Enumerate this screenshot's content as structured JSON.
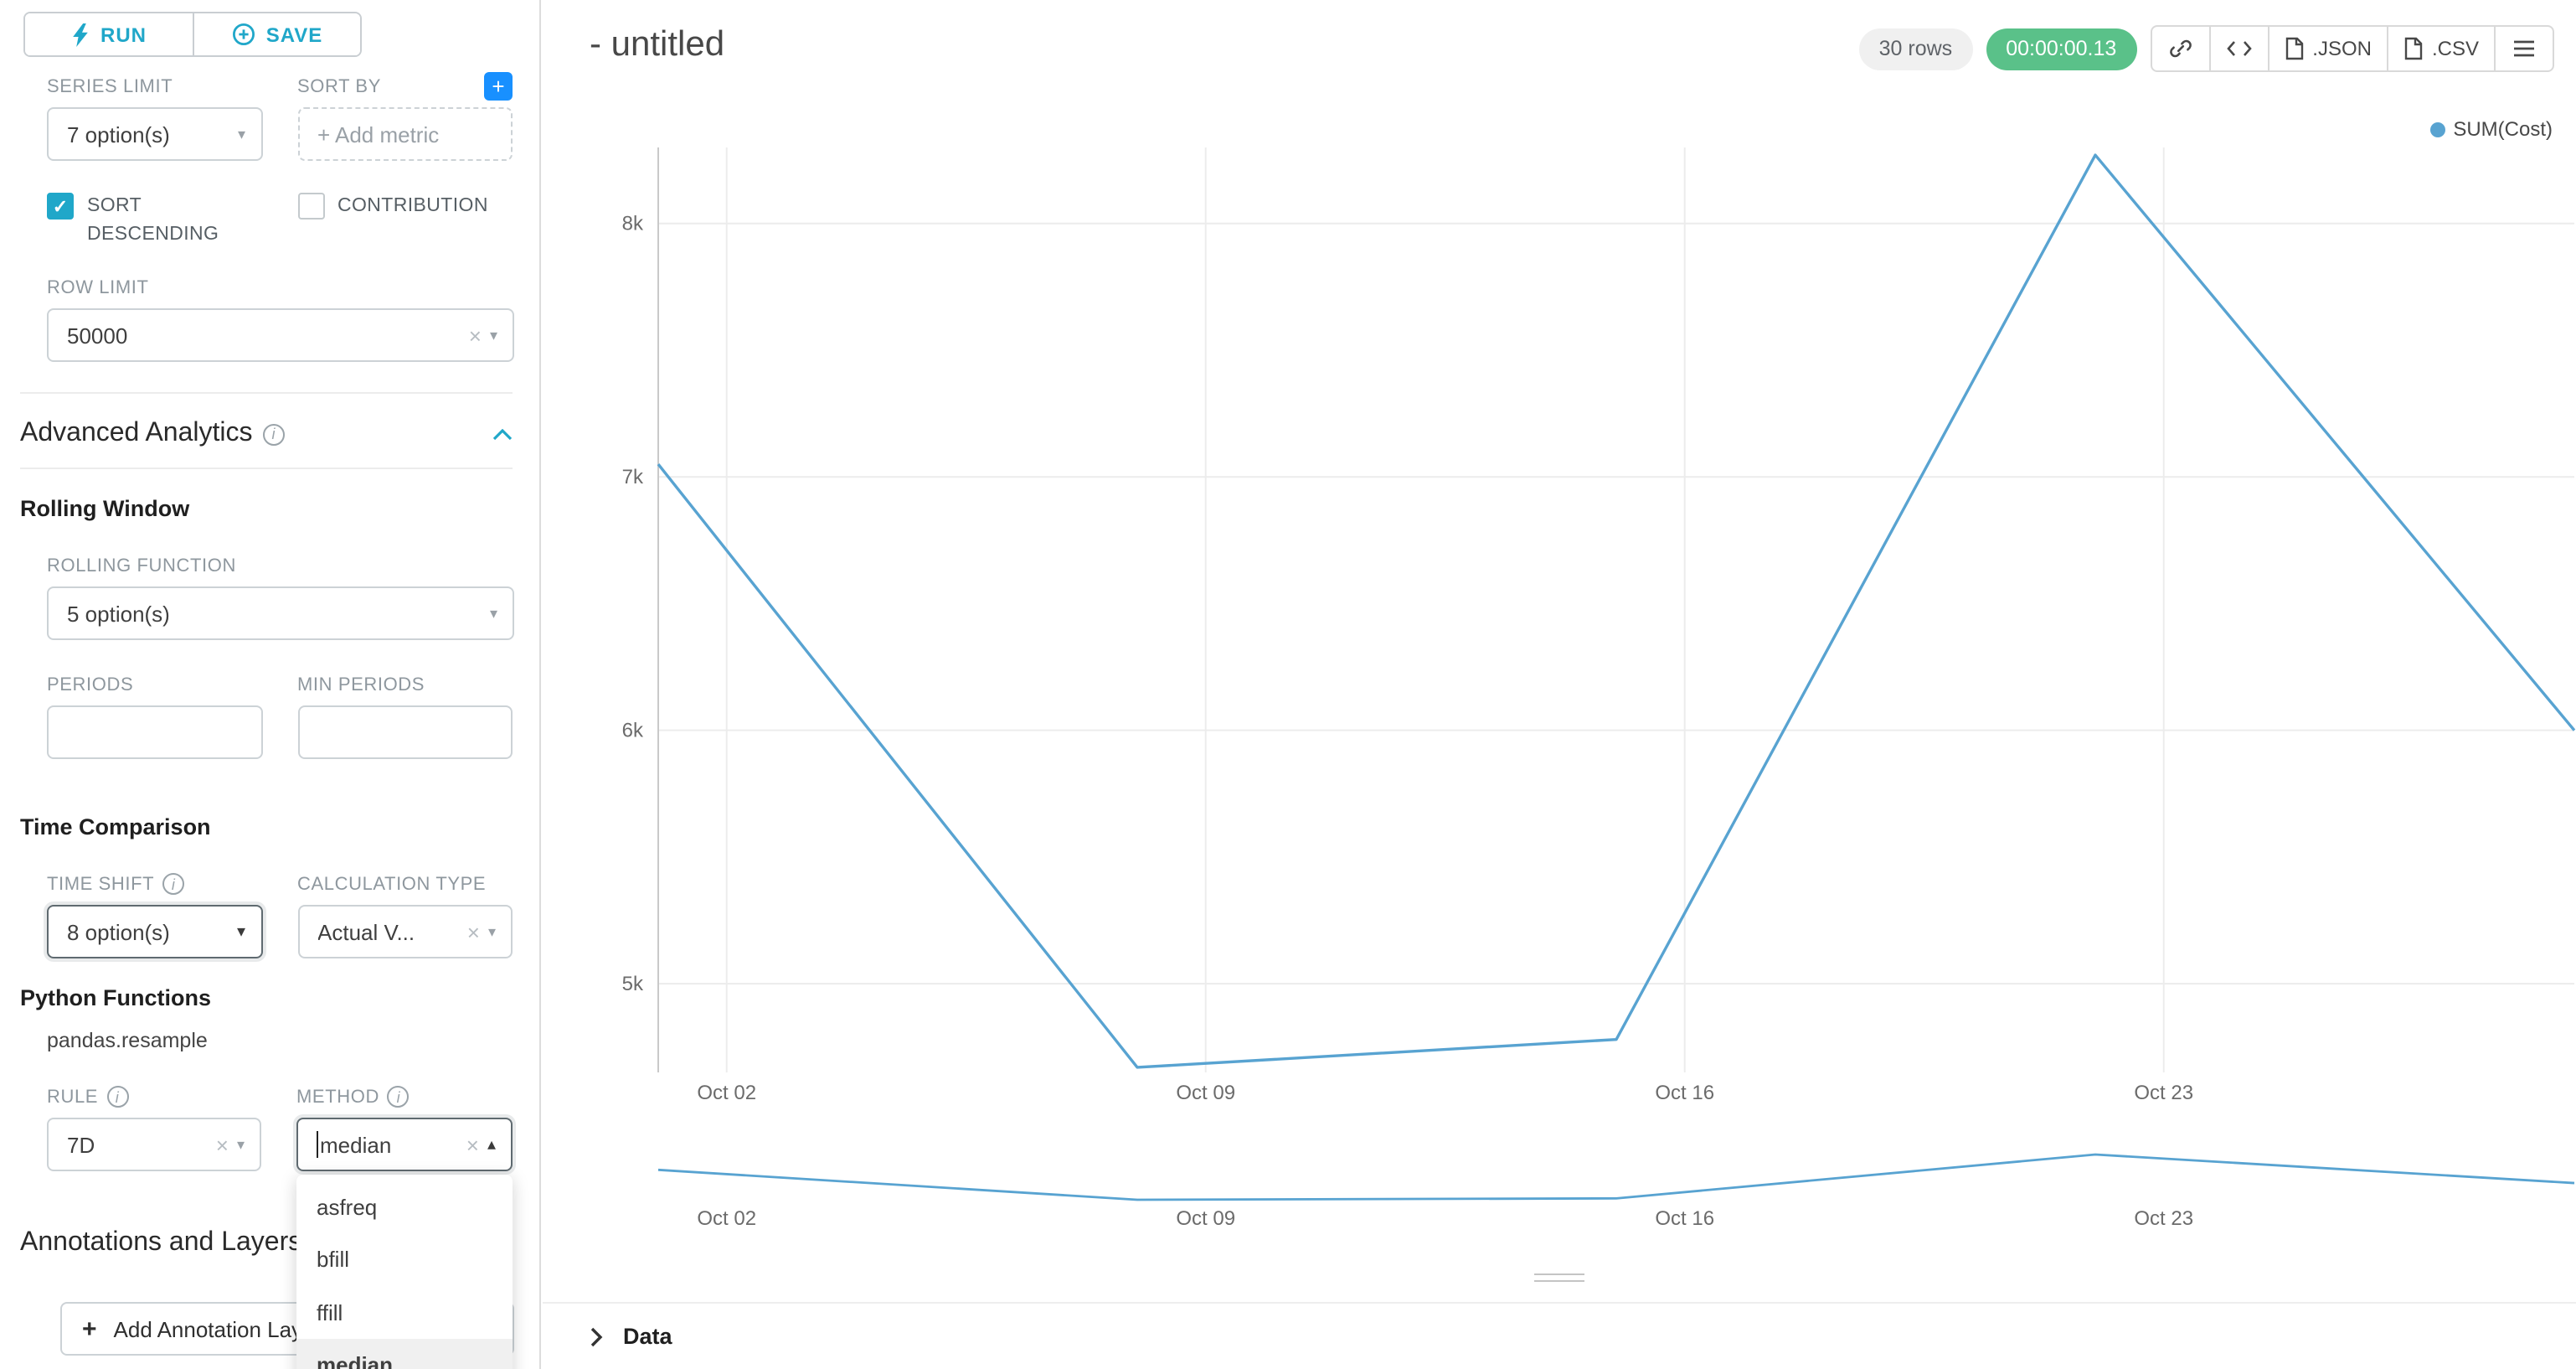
{
  "colors": {
    "accent": "#20a7c9",
    "add_metric_button_blue": "#1890ff",
    "timer_badge_bg": "#5ac189",
    "line": "#58a3d1"
  },
  "left_panel": {
    "run_label": "RUN",
    "save_label": "SAVE",
    "series_limit": {
      "label": "SERIES LIMIT",
      "value": "7 option(s)"
    },
    "sort_by": {
      "label": "SORT BY",
      "placeholder": "+ Add metric"
    },
    "sort_descending": {
      "label": "SORT DESCENDING",
      "checked": true
    },
    "contribution": {
      "label": "CONTRIBUTION",
      "checked": false
    },
    "row_limit": {
      "label": "ROW LIMIT",
      "value": "50000"
    },
    "advanced_analytics_title": "Advanced Analytics",
    "rolling_window": {
      "title": "Rolling Window",
      "rolling_function": {
        "label": "ROLLING FUNCTION",
        "value": "5 option(s)"
      },
      "periods_label": "PERIODS",
      "min_periods_label": "MIN PERIODS"
    },
    "time_comparison": {
      "title": "Time Comparison",
      "time_shift": {
        "label": "TIME SHIFT",
        "value": "8 option(s)"
      },
      "calculation_type": {
        "label": "CALCULATION TYPE",
        "value": "Actual V..."
      }
    },
    "python_functions": {
      "title": "Python Functions",
      "subtitle": "pandas.resample",
      "rule": {
        "label": "RULE",
        "value": "7D"
      },
      "method": {
        "label": "METHOD",
        "value": "median",
        "options": [
          "asfreq",
          "bfill",
          "ffill",
          "median"
        ],
        "selected": "median"
      }
    },
    "annotations": {
      "title": "Annotations and Layers",
      "add_label": "Add Annotation Layer"
    }
  },
  "header": {
    "title": "- untitled",
    "rows_badge": "30 rows",
    "timer_badge": "00:00:00.13",
    "json_label": ".JSON",
    "csv_label": ".CSV"
  },
  "data_panel": {
    "title": "Data"
  },
  "chart_data": {
    "type": "line",
    "title": "",
    "legend": [
      "SUM(Cost)"
    ],
    "legend_position": "top-right",
    "grid": true,
    "line_color": "#58a3d1",
    "x": [
      "Oct 01",
      "Oct 08",
      "Oct 15",
      "Oct 22",
      "Oct 29"
    ],
    "x_days": [
      0,
      7,
      14,
      21,
      28
    ],
    "series": [
      {
        "name": "SUM(Cost)",
        "values": [
          7050,
          4670,
          4780,
          8270,
          6000
        ]
      }
    ],
    "x_tick_labels": [
      "Oct 02",
      "Oct 09",
      "Oct 16",
      "Oct 23"
    ],
    "x_tick_days": [
      1,
      8,
      15,
      22
    ],
    "y_ticks": [
      5000,
      6000,
      7000,
      8000
    ],
    "y_tick_labels": [
      "5k",
      "6k",
      "7k",
      "8k"
    ],
    "ylim": [
      4650,
      8300
    ],
    "xlim_days": [
      0,
      28
    ],
    "has_mini_overview_chart": true
  }
}
